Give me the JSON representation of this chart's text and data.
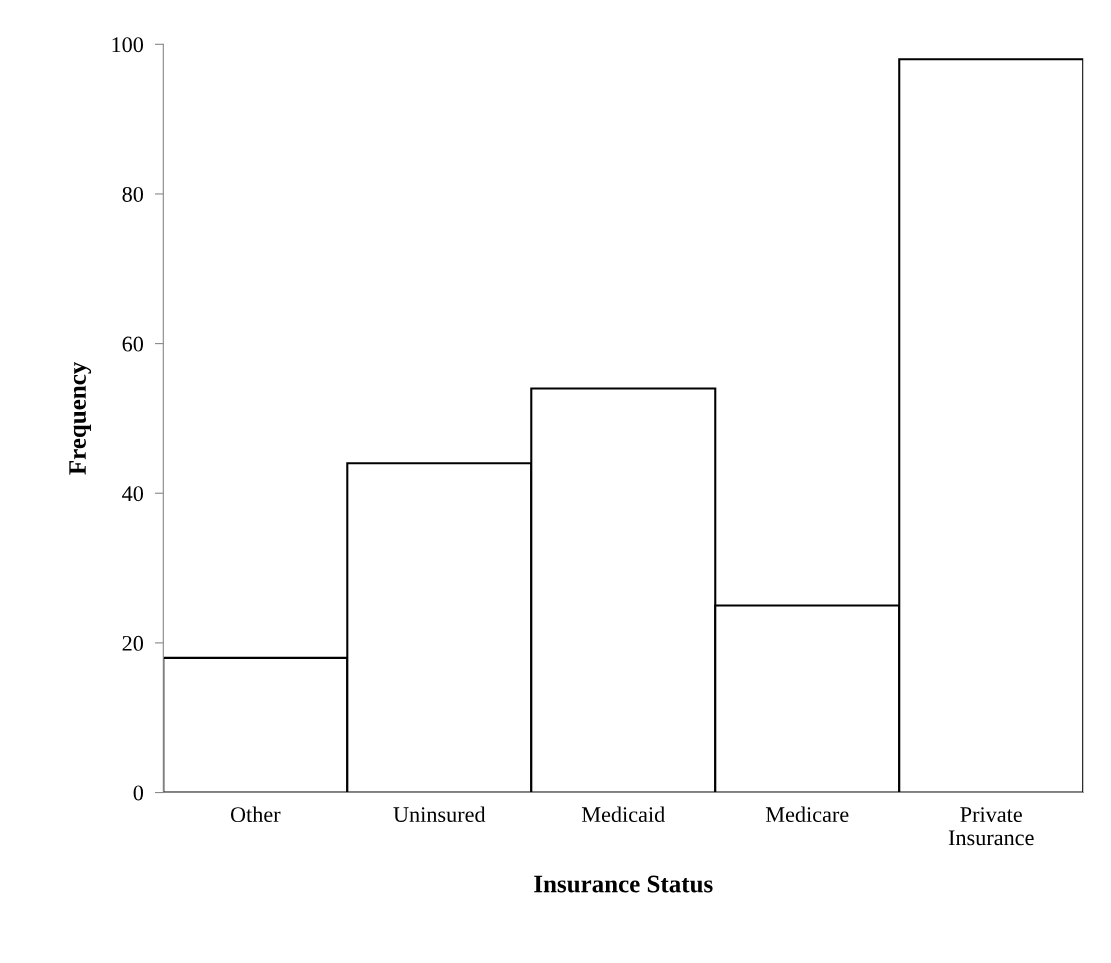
{
  "chart_data": {
    "type": "bar",
    "xlabel": "Insurance Status",
    "ylabel": "Frequency",
    "categories": [
      "Other",
      "Uninsured",
      "Medicaid",
      "Medicare",
      "Private\nInsurance"
    ],
    "values": [
      18,
      44,
      54,
      25,
      98
    ],
    "color": "#ffffff",
    "ylim": [
      0,
      100
    ],
    "yticks": [
      0,
      20,
      40,
      60,
      80,
      100
    ],
    "grid": false
  }
}
